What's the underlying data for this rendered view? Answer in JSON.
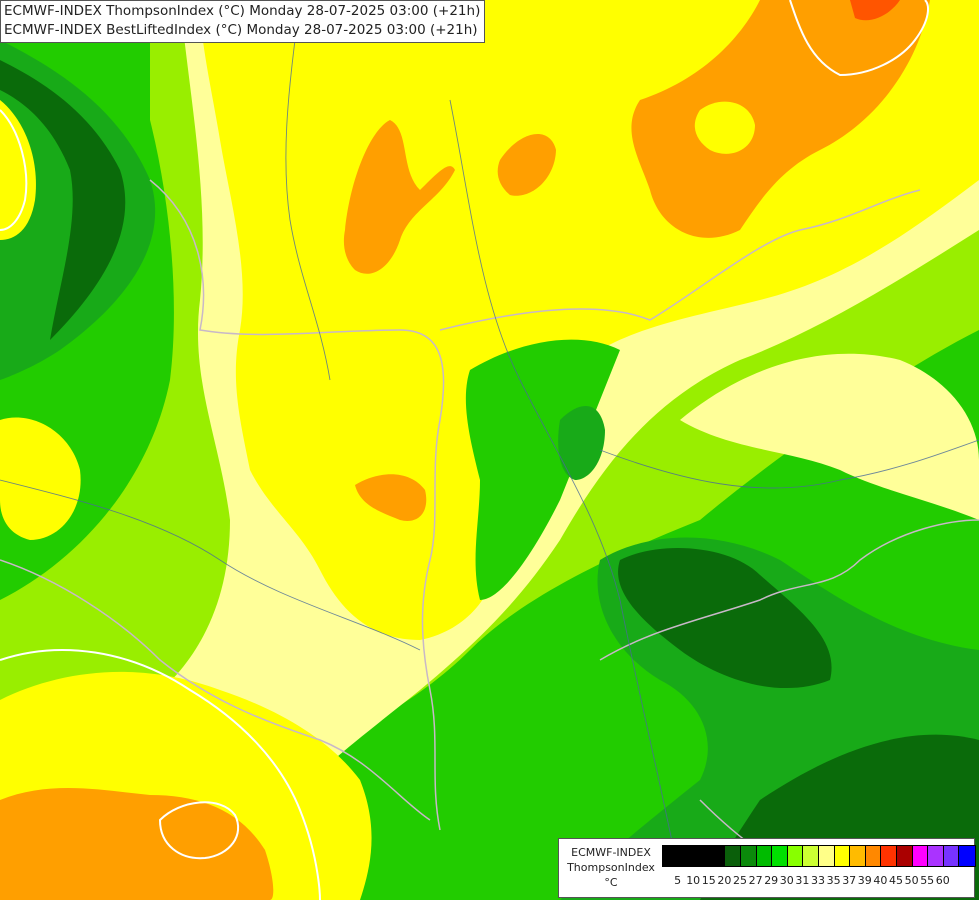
{
  "title_lines": [
    "ECMWF-INDEX ThompsonIndex (°C) Monday 28-07-2025 03:00 (+21h)",
    "ECMWF-INDEX BestLiftedIndex (°C) Monday 28-07-2025 03:00 (+21h)"
  ],
  "legend": {
    "title_line1": "ECMWF-INDEX",
    "title_line2": "ThompsonIndex",
    "unit": "°C",
    "ticks": [
      "5",
      "10",
      "15",
      "20",
      "25",
      "27",
      "29",
      "30",
      "31",
      "33",
      "35",
      "37",
      "39",
      "40",
      "45",
      "50",
      "55",
      "60"
    ],
    "colors": [
      "#000000",
      "#000000",
      "#000000",
      "#000000",
      "#0a5f0a",
      "#0b8a0b",
      "#00bb00",
      "#00e000",
      "#88ff00",
      "#ccff33",
      "#ffff88",
      "#ffff00",
      "#ffbb00",
      "#ff8800",
      "#ff3300",
      "#aa0000",
      "#ff00ff",
      "#aa33ff",
      "#7733ff",
      "#0000ff"
    ]
  },
  "map_colors": {
    "dark_green": "#0a6b0a",
    "green": "#18aa18",
    "bright_green": "#22cc00",
    "lime": "#99ee00",
    "light_yellow": "#ffff99",
    "yellow": "#ffff00",
    "orange": "#ff9f00",
    "deep_orange": "#ff5500"
  }
}
